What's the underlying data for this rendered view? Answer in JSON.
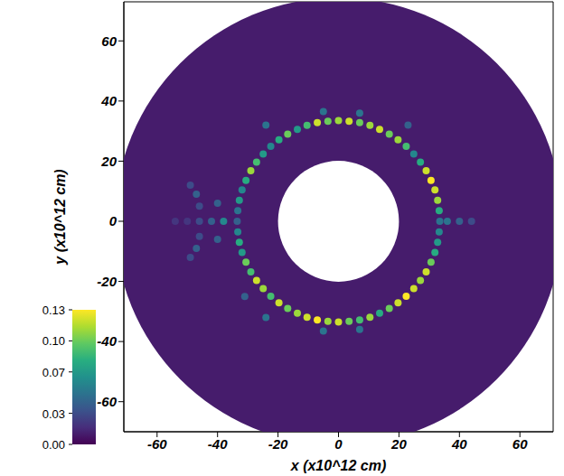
{
  "chart_data": {
    "type": "heatmap",
    "x_label": "x (x10^12 cm)",
    "y_label": "y (x10^12 cm)",
    "xlim": [
      -71,
      71
    ],
    "ylim": [
      -70,
      73
    ],
    "xticks": [
      -60,
      -40,
      -20,
      0,
      20,
      40,
      60
    ],
    "yticks": [
      -60,
      -40,
      -20,
      0,
      20,
      40,
      60
    ],
    "background": {
      "center": [
        0,
        0
      ],
      "value": 0.01,
      "r_inner": 20,
      "r_outer": 74
    },
    "cells": [
      [
        33.5,
        0,
        0.05
      ],
      [
        33.3,
        3.5,
        0.08
      ],
      [
        32.8,
        7.0,
        0.11
      ],
      [
        31.9,
        10.4,
        0.12
      ],
      [
        30.6,
        13.6,
        0.13
      ],
      [
        29.0,
        16.8,
        0.12
      ],
      [
        27.1,
        19.7,
        0.08
      ],
      [
        24.9,
        22.4,
        0.06
      ],
      [
        22.4,
        24.9,
        0.09
      ],
      [
        19.7,
        27.1,
        0.11
      ],
      [
        16.8,
        29.0,
        0.1
      ],
      [
        13.6,
        30.6,
        0.12
      ],
      [
        10.4,
        31.9,
        0.11
      ],
      [
        7.0,
        32.8,
        0.1
      ],
      [
        3.5,
        33.3,
        0.12
      ],
      [
        0,
        33.5,
        0.11
      ],
      [
        -3.5,
        33.3,
        0.1
      ],
      [
        -7.0,
        32.8,
        0.12
      ],
      [
        -10.4,
        31.9,
        0.09
      ],
      [
        -13.6,
        30.6,
        0.07
      ],
      [
        -16.8,
        29.0,
        0.1
      ],
      [
        -19.7,
        27.1,
        0.08
      ],
      [
        -22.4,
        24.9,
        0.06
      ],
      [
        -24.9,
        22.4,
        0.07
      ],
      [
        -27.1,
        19.7,
        0.09
      ],
      [
        -29.0,
        16.8,
        0.11
      ],
      [
        -30.6,
        13.6,
        0.08
      ],
      [
        -31.9,
        10.4,
        0.06
      ],
      [
        -32.8,
        7.0,
        0.07
      ],
      [
        -33.3,
        3.5,
        0.05
      ],
      [
        -33.5,
        0,
        0.04
      ],
      [
        -33.3,
        -3.5,
        0.06
      ],
      [
        -32.8,
        -7.0,
        0.08
      ],
      [
        -31.9,
        -10.4,
        0.07
      ],
      [
        -30.6,
        -13.6,
        0.1
      ],
      [
        -29.0,
        -16.8,
        0.09
      ],
      [
        -27.1,
        -19.7,
        0.12
      ],
      [
        -24.9,
        -22.4,
        0.11
      ],
      [
        -22.4,
        -24.9,
        0.09
      ],
      [
        -19.7,
        -27.1,
        0.12
      ],
      [
        -16.8,
        -29.0,
        0.1
      ],
      [
        -13.6,
        -30.6,
        0.11
      ],
      [
        -10.4,
        -31.9,
        0.12
      ],
      [
        -7.0,
        -32.8,
        0.13
      ],
      [
        -3.5,
        -33.3,
        0.11
      ],
      [
        0,
        -33.5,
        0.12
      ],
      [
        3.5,
        -33.3,
        0.1
      ],
      [
        7.0,
        -32.8,
        0.09
      ],
      [
        10.4,
        -31.9,
        0.11
      ],
      [
        13.6,
        -30.6,
        0.08
      ],
      [
        16.8,
        -29.0,
        0.1
      ],
      [
        19.7,
        -27.1,
        0.12
      ],
      [
        22.4,
        -24.9,
        0.13
      ],
      [
        24.9,
        -22.4,
        0.12
      ],
      [
        27.1,
        -19.7,
        0.11
      ],
      [
        29.0,
        -16.8,
        0.12
      ],
      [
        30.6,
        -13.6,
        0.1
      ],
      [
        31.9,
        -10.4,
        0.08
      ],
      [
        32.8,
        -7.0,
        0.07
      ],
      [
        33.3,
        -3.5,
        0.06
      ],
      [
        -5,
        36.5,
        0.05
      ],
      [
        7,
        36,
        0.05
      ],
      [
        -24,
        32,
        0.05
      ],
      [
        23,
        32,
        0.04
      ],
      [
        -5,
        -36.5,
        0.05
      ],
      [
        7,
        -36,
        0.05
      ],
      [
        -24,
        -32,
        0.05
      ],
      [
        -31,
        -25,
        0.04
      ],
      [
        -38,
        0,
        0.06
      ],
      [
        -42,
        0,
        0.04
      ],
      [
        -46,
        0,
        0.03
      ],
      [
        -50,
        0,
        0.02
      ],
      [
        -54,
        0,
        0.02
      ],
      [
        -47,
        9,
        0.04
      ],
      [
        -46,
        5,
        0.03
      ],
      [
        -49,
        12,
        0.03
      ],
      [
        -47,
        -9,
        0.04
      ],
      [
        -46,
        -5,
        0.03
      ],
      [
        -49,
        -12,
        0.03
      ],
      [
        -40,
        6,
        0.04
      ],
      [
        -40,
        -6,
        0.04
      ],
      [
        36,
        0,
        0.05
      ],
      [
        40,
        0,
        0.04
      ],
      [
        44,
        0,
        0.03
      ]
    ],
    "colorbar": {
      "range": [
        0,
        0.13
      ],
      "ticks": [
        {
          "value": 0,
          "label": "0.00"
        },
        {
          "value": 0.03,
          "label": "0.03"
        },
        {
          "value": 0.07,
          "label": "0.07"
        },
        {
          "value": 0.1,
          "label": "0.10"
        },
        {
          "value": 0.13,
          "label": "0.13"
        }
      ]
    }
  }
}
